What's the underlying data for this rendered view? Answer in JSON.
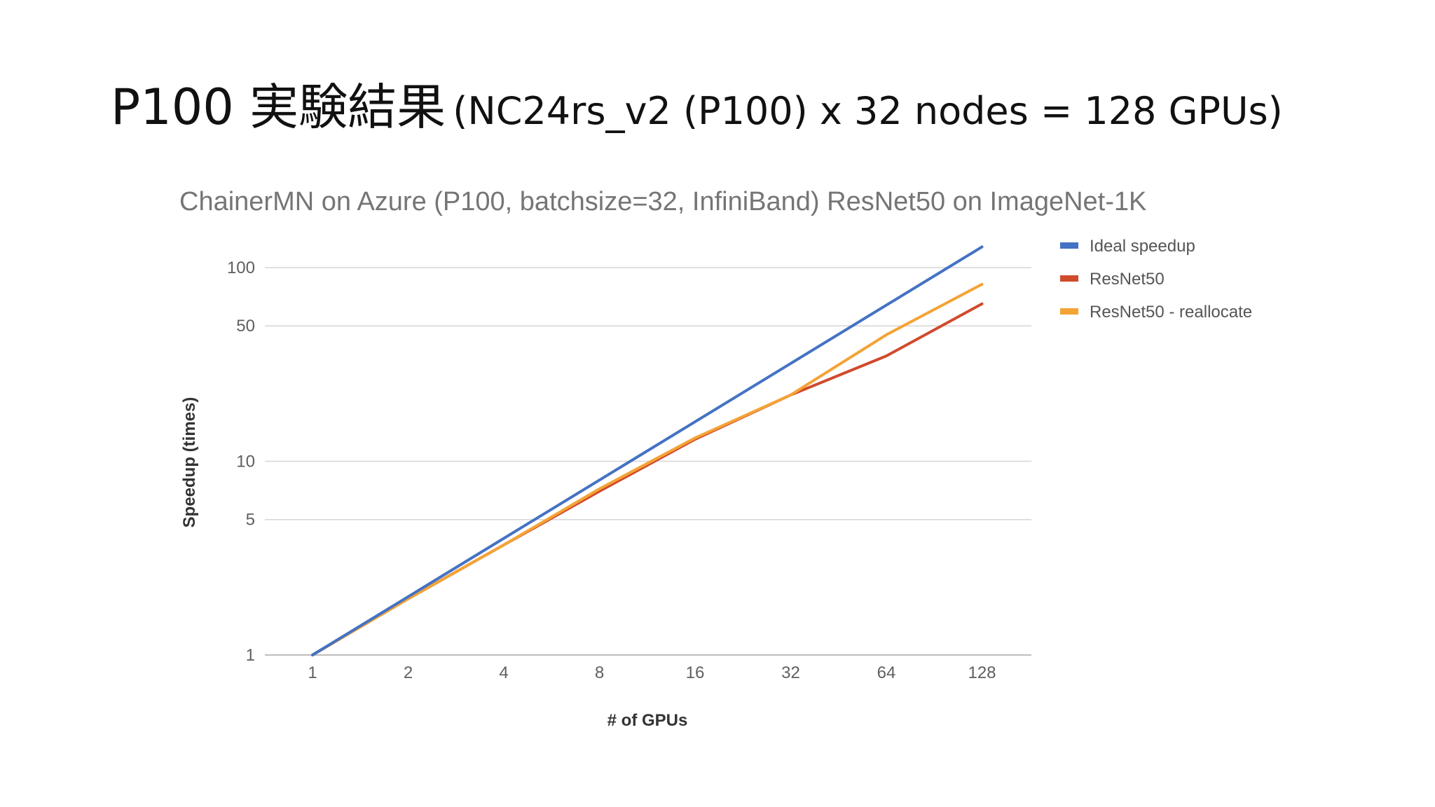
{
  "slide": {
    "title_main": "P100 実験結果",
    "title_sub": "(NC24rs_v2 (P100) x 32 nodes = 128 GPUs)"
  },
  "chart_data": {
    "type": "line",
    "title": "ChainerMN on Azure (P100, batchsize=32, InfiniBand) ResNet50 on ImageNet-1K",
    "xlabel": "# of GPUs",
    "ylabel": "Speedup (times)",
    "x_scale": "log2 (categorical, evenly spaced)",
    "y_scale": "log",
    "ylim": [
      1,
      140
    ],
    "categories": [
      "1",
      "2",
      "4",
      "8",
      "16",
      "32",
      "64",
      "128"
    ],
    "y_ticks": [
      "1",
      "5",
      "10",
      "50",
      "100"
    ],
    "grid": true,
    "legend_position": "right",
    "series": [
      {
        "name": "Ideal speedup",
        "color": "#4472c4",
        "values": [
          1,
          2,
          4,
          8,
          16,
          32,
          64,
          128
        ]
      },
      {
        "name": "ResNet50",
        "color": "#d04a2c",
        "values": [
          1,
          1.95,
          3.7,
          7.0,
          13.0,
          22.0,
          35.0,
          65.0
        ]
      },
      {
        "name": "ResNet50 - reallocate",
        "color": "#f4a335",
        "values": [
          1,
          1.95,
          3.7,
          7.2,
          13.2,
          22.0,
          45.0,
          82.0
        ]
      }
    ]
  }
}
